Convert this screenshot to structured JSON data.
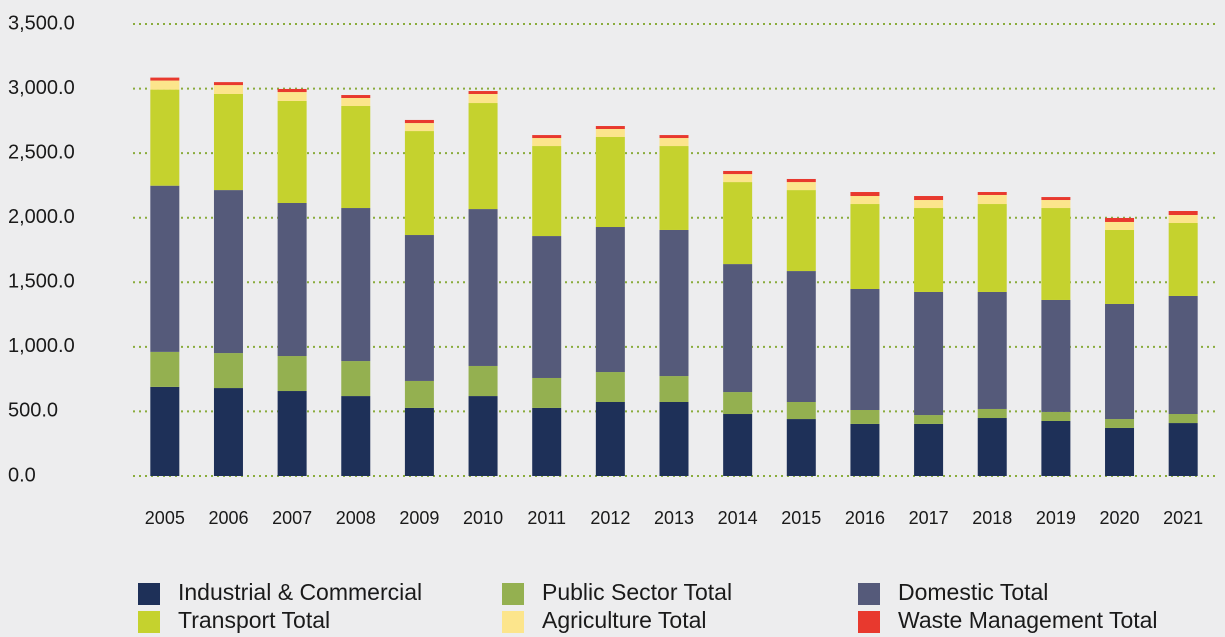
{
  "chart_data": {
    "type": "bar",
    "stacked": true,
    "categories": [
      "2005",
      "2006",
      "2007",
      "2008",
      "2009",
      "2010",
      "2011",
      "2012",
      "2013",
      "2014",
      "2015",
      "2016",
      "2017",
      "2018",
      "2019",
      "2020",
      "2021"
    ],
    "series": [
      {
        "name": "Industrial & Commercial",
        "color": "#1e3058",
        "values": [
          690,
          681,
          658,
          619,
          527,
          619,
          527,
          573,
          573,
          480,
          441,
          403,
          403,
          449,
          426,
          372,
          410
        ]
      },
      {
        "name": "Public Sector Total",
        "color": "#94b050",
        "values": [
          271,
          271,
          271,
          271,
          209,
          233,
          232,
          232,
          201,
          170,
          132,
          108,
          69,
          70,
          70,
          69,
          70
        ]
      },
      {
        "name": "Domestic Total",
        "color": "#555a7a",
        "values": [
          1287,
          1262,
          1185,
          1185,
          1130,
          1215,
          1099,
          1123,
          1131,
          991,
          1014,
          937,
          953,
          906,
          867,
          891,
          914
        ]
      },
      {
        "name": "Transport Total",
        "color": "#c5d22e",
        "values": [
          744,
          744,
          790,
          790,
          805,
          821,
          697,
          697,
          650,
          635,
          627,
          658,
          650,
          681,
          712,
          573,
          565
        ]
      },
      {
        "name": "Agriculture Total",
        "color": "#fce58c",
        "values": [
          70,
          69,
          69,
          62,
          62,
          70,
          62,
          62,
          62,
          62,
          62,
          62,
          62,
          70,
          62,
          62,
          62
        ]
      },
      {
        "name": "Waste Management Total",
        "color": "#e8392e",
        "values": [
          23,
          23,
          24,
          23,
          24,
          23,
          23,
          23,
          23,
          24,
          24,
          31,
          31,
          23,
          23,
          31,
          31
        ]
      }
    ],
    "ylim": [
      0,
      3500
    ],
    "yticks": [
      {
        "value": 0,
        "label": "0.0"
      },
      {
        "value": 500,
        "label": "500.0"
      },
      {
        "value": 1000,
        "label": "1,000.0"
      },
      {
        "value": 1500,
        "label": "1,500.0"
      },
      {
        "value": 2000,
        "label": "2,000.0"
      },
      {
        "value": 2500,
        "label": "2,500.0"
      },
      {
        "value": 3000,
        "label": "3,000.0"
      },
      {
        "value": 3500,
        "label": "3,500.0"
      }
    ],
    "grid": true,
    "grid_color": "#8aac3c",
    "legend": "bottom"
  }
}
